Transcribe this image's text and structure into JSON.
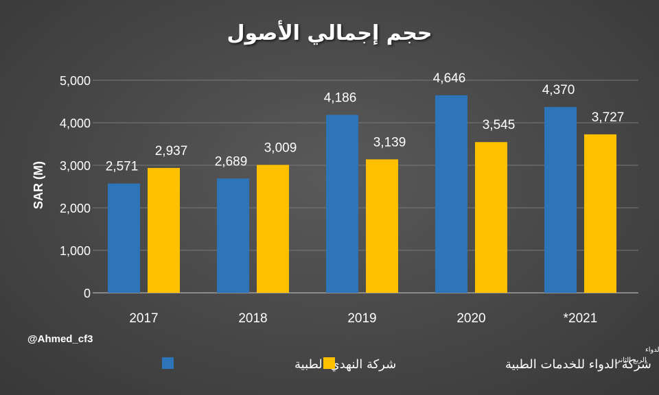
{
  "colors": {
    "series1": "#2E74B8",
    "series2": "#FFC000",
    "gridline": "#7a7a7a",
    "text": "#ffffff"
  },
  "handle": "@Ahmed_cf3",
  "footnote": {
    "line1": "* النهدي الربع الثالث، الدواء",
    "line2": "الربع الثاني"
  },
  "chart_data": {
    "type": "bar",
    "title": "حجم إجمالي الأصول",
    "xlabel": "",
    "ylabel": "SAR (M)",
    "ylim": [
      0,
      5000
    ],
    "yticks": [
      0,
      1000,
      2000,
      3000,
      4000,
      5000
    ],
    "ytick_labels": [
      "0",
      "1,000",
      "2,000",
      "3,000",
      "4,000",
      "5,000"
    ],
    "categories": [
      "2017",
      "2018",
      "2019",
      "2020",
      "2021*"
    ],
    "category_labels": [
      "2017",
      "2018",
      "2019",
      "2020",
      "*2021"
    ],
    "grid": true,
    "legend_position": "bottom",
    "series": [
      {
        "name": "شركة النهدي الطبية",
        "values": [
          2571,
          2689,
          4186,
          4646,
          4370
        ],
        "labels": [
          "2,571",
          "2,689",
          "4,186",
          "4,646",
          "4,370"
        ]
      },
      {
        "name": "شركة الدواء للخدمات الطبية",
        "values": [
          2937,
          3009,
          3139,
          3545,
          3727
        ],
        "labels": [
          "2,937",
          "3,009",
          "3,139",
          "3,545",
          "3,727"
        ]
      }
    ]
  }
}
